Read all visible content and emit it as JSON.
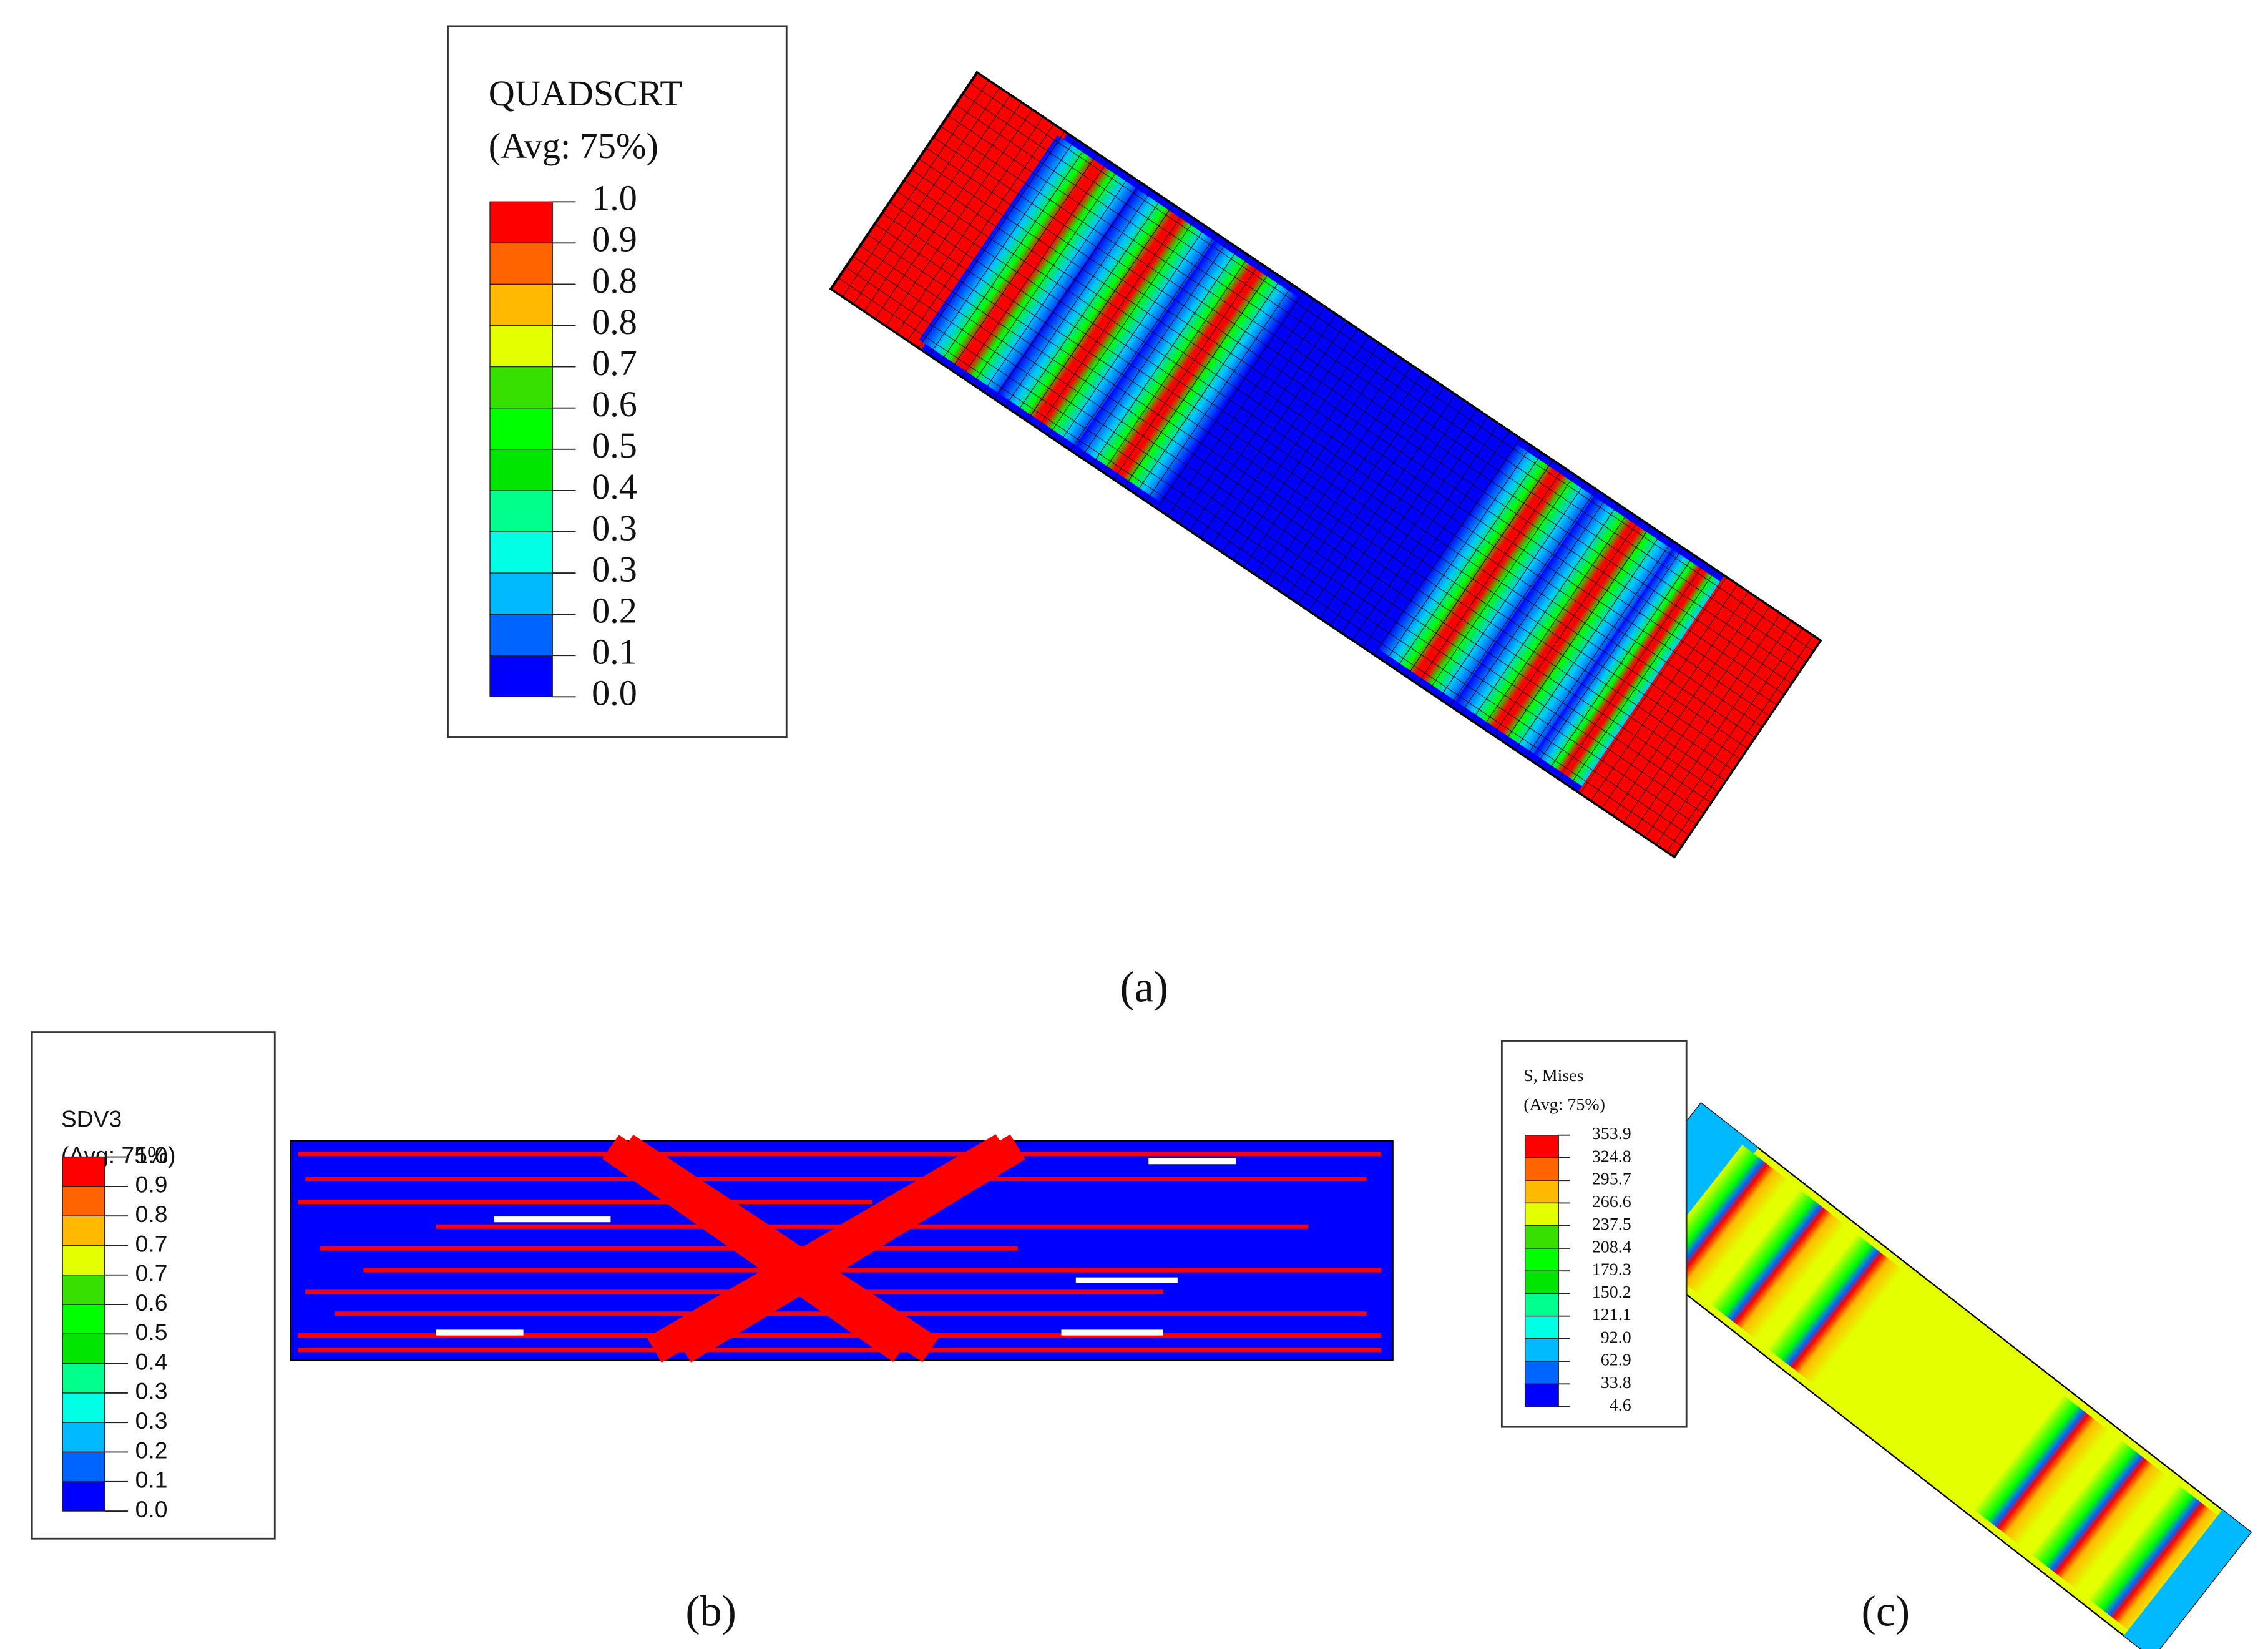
{
  "panels": [
    {
      "label": "(a)",
      "legend": {
        "title": "QUADSCRT",
        "subtitle": "(Avg: 75%)",
        "ticks": [
          "1.0",
          "0.9",
          "0.8",
          "0.8",
          "0.7",
          "0.6",
          "0.5",
          "0.4",
          "0.3",
          "0.3",
          "0.2",
          "0.1",
          "0.0"
        ],
        "colors": [
          "#ff0000",
          "#ff6400",
          "#ffb900",
          "#e3ff00",
          "#38e000",
          "#00ff00",
          "#00e600",
          "#00ff8c",
          "#00ffe5",
          "#00b9ff",
          "#0064ff",
          "#0000ff"
        ]
      }
    },
    {
      "label": "(b)",
      "legend": {
        "title": "SDV3",
        "subtitle": "(Avg: 75%)",
        "ticks": [
          "1.0",
          "0.9",
          "0.8",
          "0.7",
          "0.7",
          "0.6",
          "0.5",
          "0.4",
          "0.3",
          "0.3",
          "0.2",
          "0.1",
          "0.0"
        ],
        "colors": [
          "#ff0000",
          "#ff6400",
          "#ffb900",
          "#e3ff00",
          "#38e000",
          "#00ff00",
          "#00e600",
          "#00ff8c",
          "#00ffe5",
          "#00b9ff",
          "#0064ff",
          "#0000ff"
        ]
      }
    },
    {
      "label": "(c)",
      "legend": {
        "title": "S, Mises",
        "subtitle": "(Avg: 75%)",
        "ticks": [
          "353.9",
          "324.8",
          "295.7",
          "266.6",
          "237.5",
          "208.4",
          "179.3",
          "150.2",
          "121.1",
          "92.0",
          "62.9",
          "33.8",
          "4.6"
        ],
        "colors": [
          "#ff0000",
          "#ff6400",
          "#ffb900",
          "#e3ff00",
          "#38e000",
          "#00ff00",
          "#00e600",
          "#00ff8c",
          "#00ffe5",
          "#00b9ff",
          "#0064ff",
          "#0000ff"
        ]
      }
    }
  ]
}
